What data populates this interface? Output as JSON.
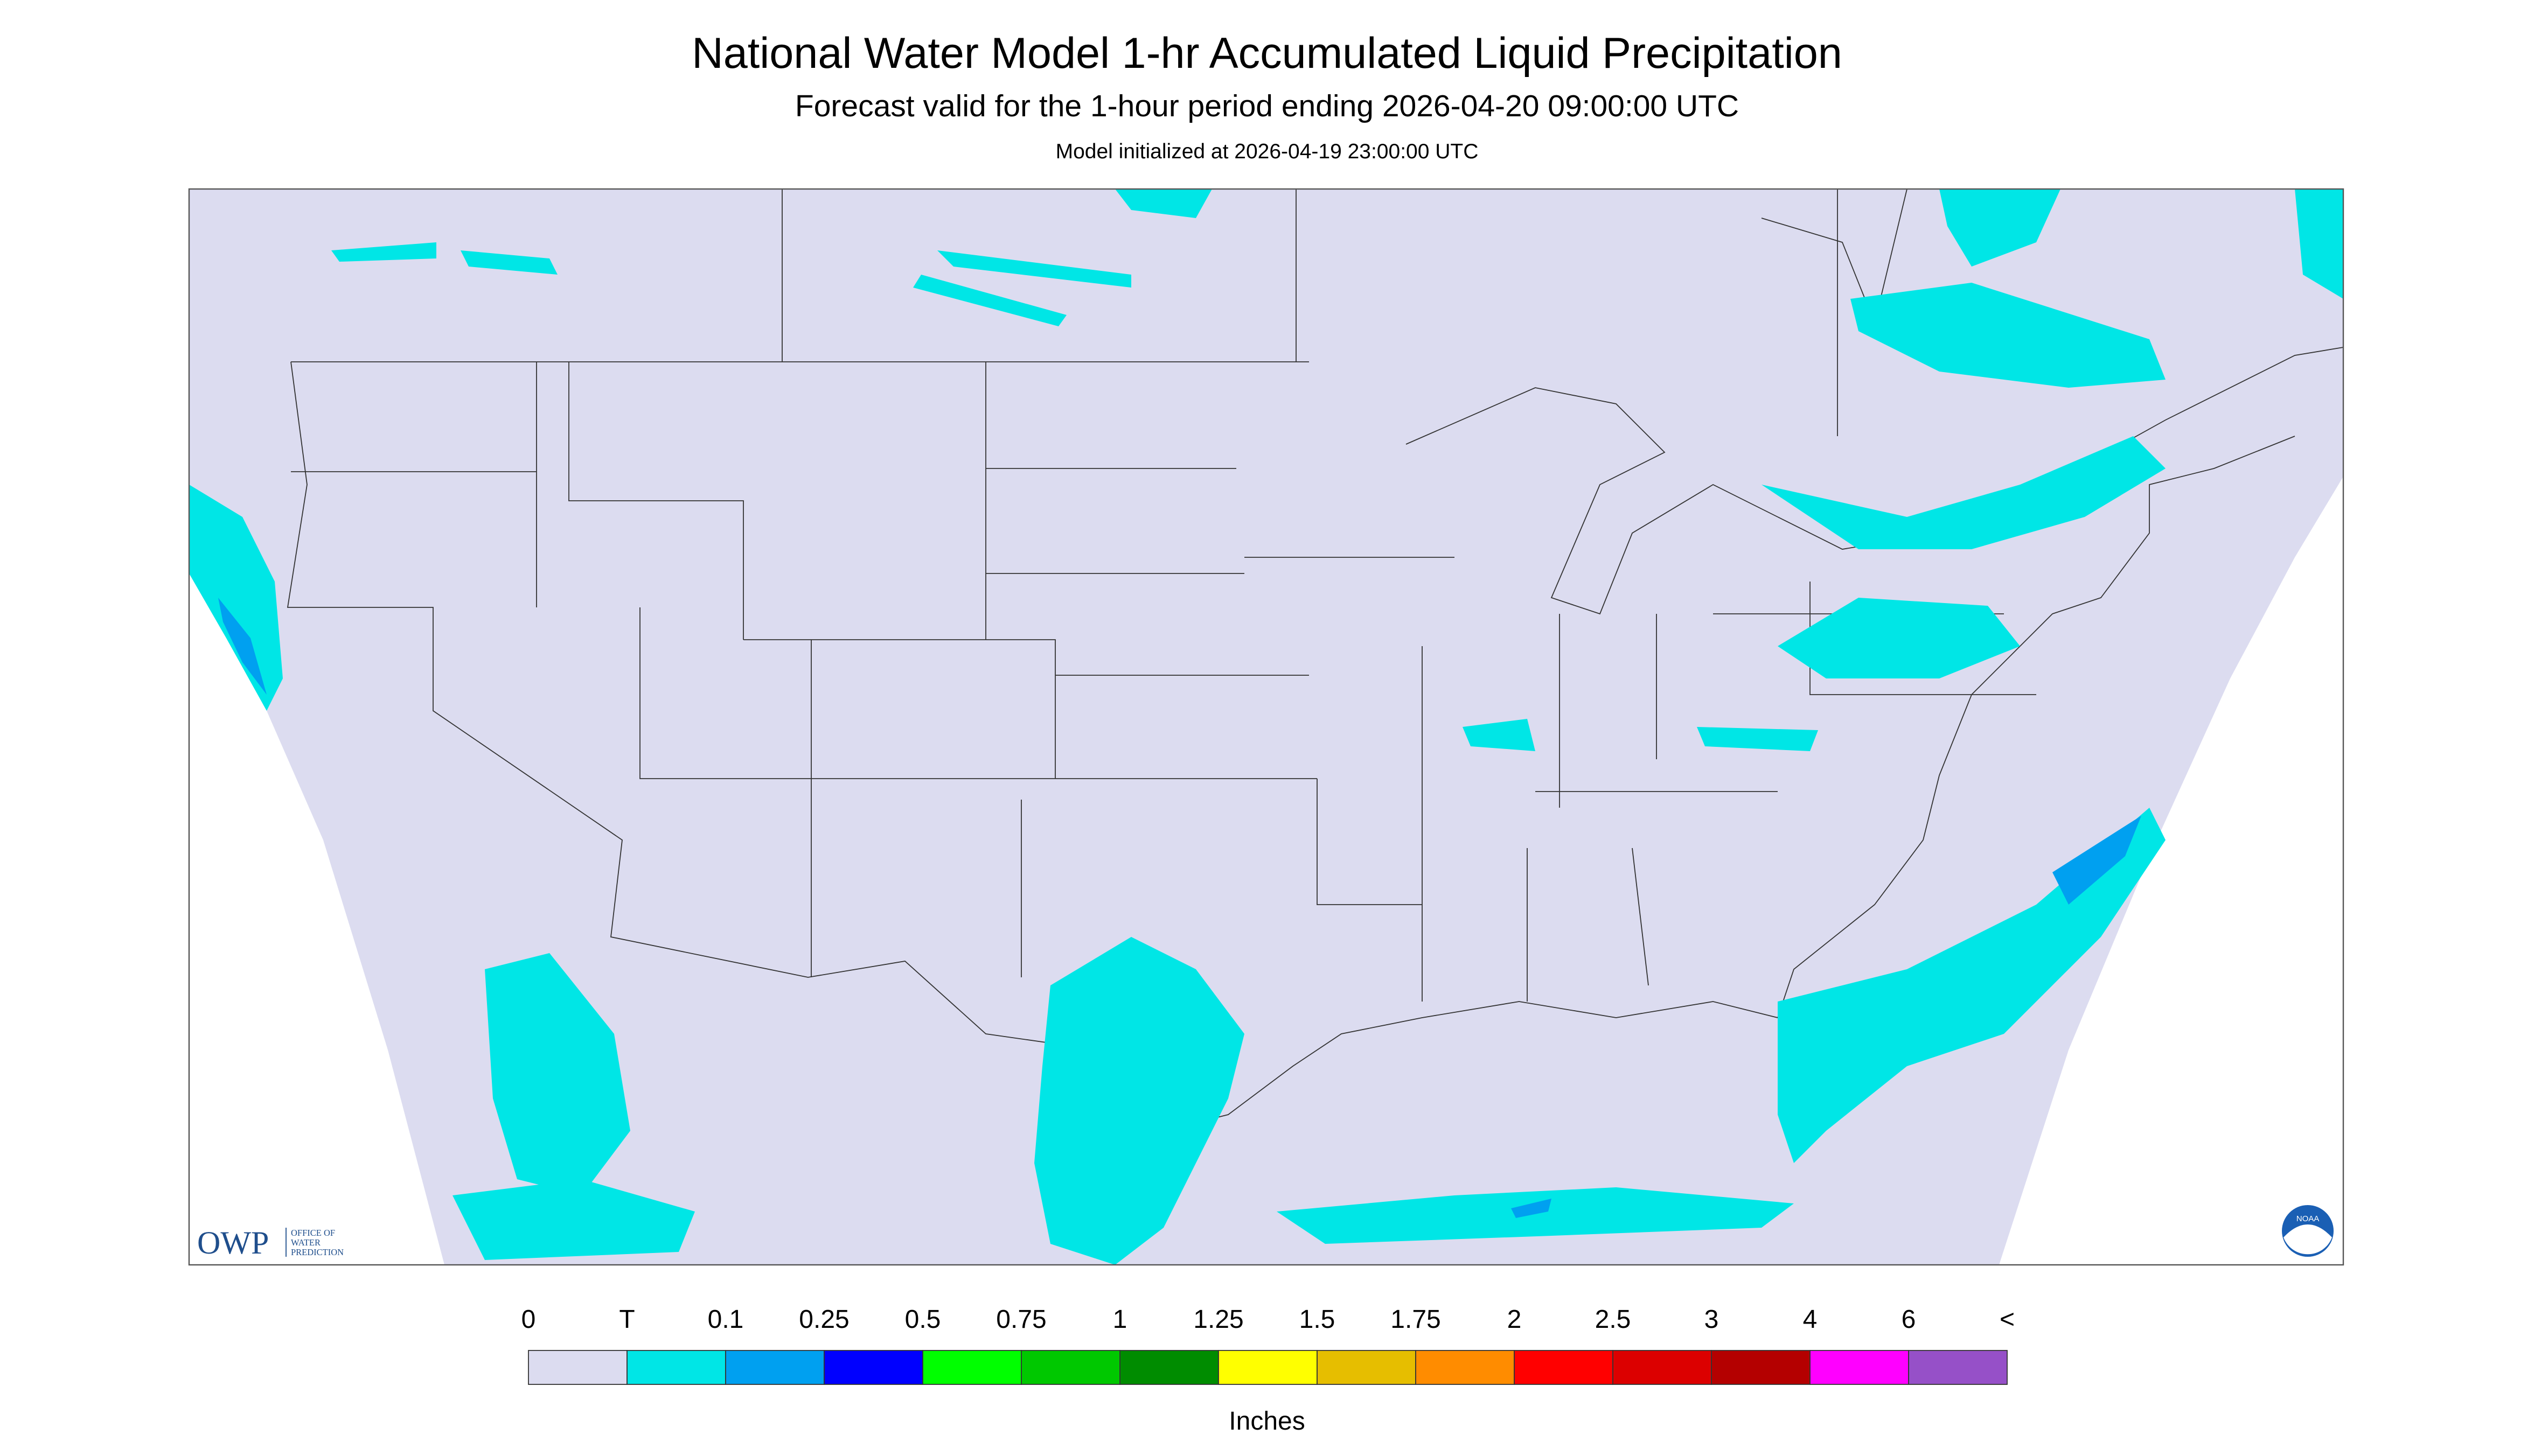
{
  "header": {
    "title": "National Water Model 1-hr Accumulated Liquid Precipitation",
    "subtitle": "Forecast valid for the 1-hour period ending 2026-04-20 09:00:00 UTC",
    "init": "Model initialized at 2026-04-19 23:00:00 UTC"
  },
  "legend": {
    "labels": [
      "0",
      "T",
      "0.1",
      "0.25",
      "0.5",
      "0.75",
      "1",
      "1.25",
      "1.5",
      "1.75",
      "2",
      "2.5",
      "3",
      "4",
      "6",
      "<"
    ],
    "colors": [
      "#dcdcf0",
      "#00e6e6",
      "#00a0f0",
      "#0000ff",
      "#00ff00",
      "#00c800",
      "#008c00",
      "#ffff00",
      "#e6be00",
      "#ff8c00",
      "#ff0000",
      "#dc0000",
      "#b40000",
      "#ff00ff",
      "#9650c8"
    ],
    "unit": "Inches"
  },
  "logo": {
    "name": "OWP",
    "lines": [
      "OFFICE OF",
      "WATER",
      "PREDICTION"
    ],
    "noaa": "NOAA"
  }
}
